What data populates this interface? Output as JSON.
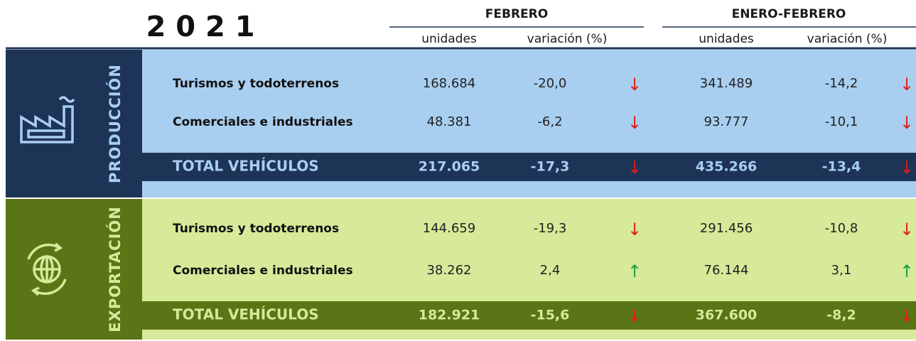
{
  "header": {
    "year": "2 0 2 1",
    "groups": [
      "FEBRERO",
      "ENERO-FEBRERO"
    ],
    "subheaders": [
      "unidades",
      "variación (%)",
      "unidades",
      "variación (%)"
    ]
  },
  "sections": [
    {
      "name": "PRODUCCIÓN",
      "rows": [
        {
          "label": "Turismos y todoterrenos",
          "cells": [
            "168.684",
            "-20,0",
            {
              "symbol": "↓",
              "color": "#e0201b"
            },
            "341.489",
            "-14,2",
            {
              "symbol": "↓",
              "color": "#e0201b"
            }
          ]
        },
        {
          "label": "Comerciales e industriales",
          "cells": [
            "48.381",
            "-6,2",
            {
              "symbol": "↓",
              "color": "#e0201b"
            },
            "93.777",
            "-10,1",
            {
              "symbol": "↓",
              "color": "#e0201b"
            }
          ]
        }
      ],
      "total": {
        "label": "TOTAL VEHÍCULOS",
        "cells": [
          "217.065",
          "-17,3",
          {
            "symbol": "↓",
            "color": "#e0201b"
          },
          "435.266",
          "-13,4",
          {
            "symbol": "↓",
            "color": "#e0201b"
          }
        ]
      }
    },
    {
      "name": "EXPORTACIÓN",
      "rows": [
        {
          "label": "Turismos y todoterrenos",
          "cells": [
            "144.659",
            "-19,3",
            {
              "symbol": "↓",
              "color": "#e0201b"
            },
            "291.456",
            "-10,8",
            {
              "symbol": "↓",
              "color": "#e0201b"
            }
          ]
        },
        {
          "label": "Comerciales e industriales",
          "cells": [
            "38.262",
            "2,4",
            {
              "symbol": "↑",
              "color": "#1aa04a"
            },
            "76.144",
            "3,1",
            {
              "symbol": "↑",
              "color": "#1aa04a"
            }
          ]
        }
      ],
      "total": {
        "label": "TOTAL VEHÍCULOS",
        "cells": [
          "182.921",
          "-15,6",
          {
            "symbol": "↓",
            "color": "#e0201b"
          },
          "367.600",
          "-8,2",
          {
            "symbol": "↓",
            "color": "#e0201b"
          }
        ]
      }
    }
  ]
}
